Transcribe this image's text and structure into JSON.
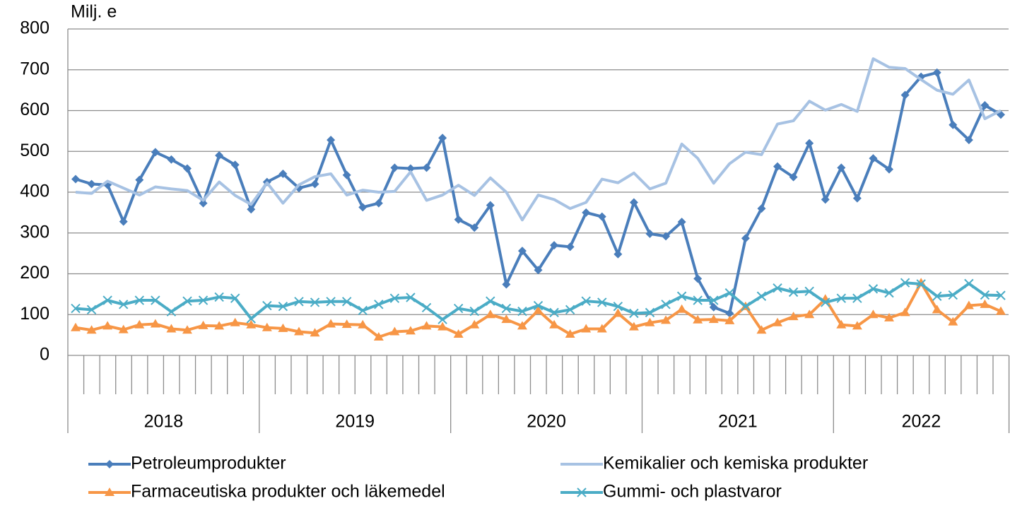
{
  "chart_data": {
    "type": "line",
    "y_axis_label": "Milj. e",
    "categories": [
      null,
      null,
      null,
      null,
      null,
      null,
      null,
      null,
      null,
      null,
      null,
      null,
      null,
      null,
      null,
      null,
      null,
      null,
      null,
      null,
      null,
      null,
      null,
      null,
      null,
      null,
      null,
      null,
      null,
      null,
      null,
      null,
      null,
      null,
      null,
      null,
      null,
      null,
      null,
      null,
      null,
      null,
      null,
      null,
      null,
      null,
      null,
      null,
      null,
      null,
      null,
      null,
      null,
      null,
      null,
      null,
      null,
      null,
      null
    ],
    "x_groups": [
      "2018",
      "2019",
      "2020",
      "2021",
      "2022"
    ],
    "ylim": [
      0,
      800
    ],
    "yticks": [
      0,
      100,
      200,
      300,
      400,
      500,
      600,
      700,
      800
    ],
    "grid": true,
    "series": [
      {
        "name": "Petroleumprodukter",
        "color": "#4a7ebb",
        "marker": "diamond",
        "values": [
          432,
          420,
          418,
          328,
          430,
          498,
          480,
          458,
          373,
          490,
          467,
          358,
          425,
          445,
          410,
          420,
          528,
          442,
          363,
          373,
          460,
          458,
          460,
          533,
          333,
          313,
          368,
          174,
          256,
          209,
          270,
          266,
          350,
          340,
          248,
          375,
          298,
          292,
          327,
          188,
          118,
          103,
          287,
          360,
          463,
          437,
          520,
          382,
          460,
          385,
          483,
          456,
          638,
          683,
          693,
          565,
          528,
          613,
          590
        ]
      },
      {
        "name": "Kemikalier och kemiska produkter",
        "color": "#a7c2e3",
        "marker": "none",
        "values": [
          400,
          397,
          427,
          410,
          393,
          413,
          408,
          404,
          380,
          425,
          392,
          370,
          423,
          373,
          418,
          438,
          445,
          393,
          405,
          400,
          402,
          450,
          380,
          393,
          417,
          392,
          435,
          400,
          332,
          393,
          382,
          360,
          375,
          432,
          423,
          447,
          408,
          422,
          518,
          483,
          422,
          470,
          498,
          492,
          567,
          575,
          623,
          601,
          615,
          598,
          727,
          706,
          703,
          676,
          650,
          640,
          675,
          580,
          600
        ]
      },
      {
        "name": "Farmaceutiska produkter och läkemedel",
        "color": "#f79646",
        "marker": "triangle",
        "values": [
          68,
          62,
          72,
          63,
          75,
          77,
          65,
          62,
          73,
          72,
          80,
          75,
          68,
          66,
          58,
          55,
          77,
          76,
          75,
          45,
          58,
          60,
          72,
          70,
          52,
          75,
          100,
          88,
          72,
          110,
          75,
          52,
          65,
          65,
          103,
          70,
          80,
          86,
          113,
          87,
          88,
          85,
          120,
          62,
          80,
          95,
          100,
          138,
          75,
          72,
          100,
          92,
          105,
          178,
          112,
          82,
          122,
          125,
          108
        ]
      },
      {
        "name": "Gummi- och plastvaror",
        "color": "#4bacc6",
        "marker": "x",
        "values": [
          115,
          112,
          135,
          125,
          135,
          135,
          107,
          133,
          135,
          143,
          140,
          90,
          122,
          120,
          132,
          130,
          132,
          132,
          110,
          125,
          140,
          142,
          117,
          88,
          115,
          108,
          133,
          115,
          108,
          122,
          105,
          112,
          133,
          130,
          120,
          103,
          105,
          125,
          145,
          135,
          135,
          153,
          120,
          145,
          165,
          155,
          157,
          130,
          140,
          140,
          163,
          153,
          178,
          175,
          145,
          148,
          176,
          148,
          147
        ]
      }
    ]
  }
}
